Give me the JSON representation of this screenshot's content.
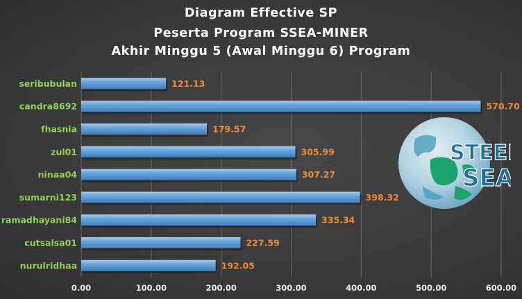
{
  "title_lines": [
    "Diagram  Effective  SP",
    "Peserta  Program  SSEA-MINER",
    "Akhir  Minggu  5 (Awal  Minggu  6)  Program"
  ],
  "logo": {
    "text_line1": "STEEM",
    "text_line2": "SEA",
    "icon": "globe-logo"
  },
  "chart_data": {
    "type": "bar",
    "orientation": "horizontal",
    "title": "Diagram Effective SP Peserta Program SSEA-MINER Akhir Minggu 5 (Awal Minggu 6) Program",
    "categories": [
      "seribubulan",
      "candra8692",
      "fhasnia",
      "zul01",
      "ninaa04",
      "sumarni123",
      "ramadhayani84",
      "cutsalsa01",
      "nurulridhaa"
    ],
    "values": [
      121.13,
      570.7,
      179.57,
      305.99,
      307.27,
      398.32,
      335.34,
      227.59,
      192.05
    ],
    "value_labels": [
      "121.13",
      "570.70",
      "179.57",
      "305.99",
      "307.27",
      "398.32",
      "335.34",
      "227.59",
      "192.05"
    ],
    "xlim": [
      0,
      600
    ],
    "x_ticks": [
      "0.00",
      "100.00",
      "200.00",
      "300.00",
      "400.00",
      "500.00",
      "600.00"
    ],
    "grid": true,
    "colors": {
      "bar": "#5b9bd5",
      "bar_light": "#8fbde6",
      "value_label": "#f08a35",
      "category_label": "#92d050",
      "background": "#3e3e3e"
    }
  }
}
